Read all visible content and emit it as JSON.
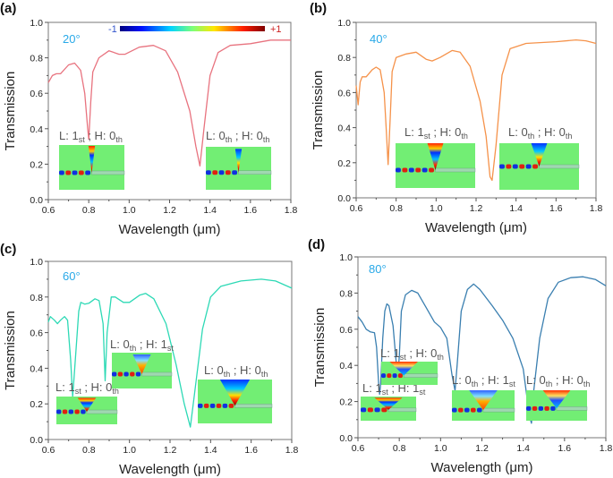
{
  "colorbar": {
    "min_label": "-1",
    "max_label": "+1"
  },
  "chart_data": [
    {
      "type": "line",
      "panel": "(a)",
      "angle": "20°",
      "color": "#e8737f",
      "xlabel": "Wavelength (μm)",
      "ylabel": "Transmission",
      "xlim": [
        0.6,
        1.8
      ],
      "ylim": [
        0.0,
        1.0
      ],
      "xticks": [
        "0.6",
        "0.8",
        "1.0",
        "1.2",
        "1.4",
        "1.6",
        "1.8"
      ],
      "yticks": [
        "0.0",
        "0.2",
        "0.4",
        "0.6",
        "0.8",
        "1.0"
      ],
      "x": [
        0.6,
        0.62,
        0.64,
        0.66,
        0.7,
        0.73,
        0.76,
        0.78,
        0.795,
        0.8,
        0.81,
        0.82,
        0.85,
        0.9,
        0.95,
        0.98,
        1.05,
        1.12,
        1.18,
        1.24,
        1.3,
        1.33,
        1.35,
        1.37,
        1.4,
        1.44,
        1.5,
        1.6,
        1.7,
        1.8
      ],
      "y": [
        0.66,
        0.7,
        0.71,
        0.71,
        0.76,
        0.77,
        0.73,
        0.6,
        0.4,
        0.34,
        0.55,
        0.72,
        0.8,
        0.84,
        0.82,
        0.82,
        0.86,
        0.87,
        0.84,
        0.72,
        0.5,
        0.3,
        0.19,
        0.4,
        0.7,
        0.83,
        0.87,
        0.88,
        0.9,
        0.9
      ],
      "annotations": [
        {
          "parts": [
            "L: 1",
            "st",
            " ; H: 0",
            "th"
          ]
        },
        {
          "parts": [
            "L: 0",
            "th",
            " ; H: 0",
            "th"
          ]
        }
      ]
    },
    {
      "type": "line",
      "panel": "(b)",
      "angle": "40°",
      "color": "#f5924a",
      "xlabel": "Wavelength (μm)",
      "ylabel": "Transmission",
      "xlim": [
        0.6,
        1.8
      ],
      "ylim": [
        0.0,
        1.0
      ],
      "xticks": [
        "0.6",
        "0.8",
        "1.0",
        "1.2",
        "1.4",
        "1.6",
        "1.8"
      ],
      "yticks": [
        "0.0",
        "0.2",
        "0.4",
        "0.6",
        "0.8",
        "1.0"
      ],
      "x": [
        0.6,
        0.61,
        0.62,
        0.63,
        0.65,
        0.68,
        0.7,
        0.72,
        0.74,
        0.75,
        0.76,
        0.77,
        0.78,
        0.8,
        0.85,
        0.9,
        0.95,
        0.98,
        1.02,
        1.08,
        1.12,
        1.17,
        1.22,
        1.25,
        1.27,
        1.28,
        1.3,
        1.33,
        1.37,
        1.45,
        1.6,
        1.7,
        1.75,
        1.8
      ],
      "y": [
        0.64,
        0.53,
        0.66,
        0.69,
        0.69,
        0.73,
        0.745,
        0.73,
        0.6,
        0.4,
        0.19,
        0.45,
        0.72,
        0.8,
        0.82,
        0.83,
        0.79,
        0.78,
        0.8,
        0.84,
        0.83,
        0.75,
        0.55,
        0.35,
        0.12,
        0.1,
        0.3,
        0.7,
        0.85,
        0.88,
        0.89,
        0.9,
        0.895,
        0.88
      ],
      "annotations": [
        {
          "parts": [
            "L: 1",
            "st",
            " ; H: 0",
            "th"
          ]
        },
        {
          "parts": [
            "L: 0",
            "th",
            " ; H: 0",
            "th"
          ]
        }
      ]
    },
    {
      "type": "line",
      "panel": "(c)",
      "angle": "60°",
      "color": "#2dd9b5",
      "xlabel": "Wavelength (μm)",
      "ylabel": "Transmission",
      "xlim": [
        0.6,
        1.8
      ],
      "ylim": [
        0.0,
        1.0
      ],
      "xticks": [
        "0.6",
        "0.8",
        "1.0",
        "1.2",
        "1.4",
        "1.6",
        "1.8"
      ],
      "yticks": [
        "0.0",
        "0.2",
        "0.4",
        "0.6",
        "0.8",
        "1.0"
      ],
      "x": [
        0.6,
        0.61,
        0.63,
        0.645,
        0.66,
        0.68,
        0.695,
        0.71,
        0.72,
        0.73,
        0.75,
        0.76,
        0.78,
        0.8,
        0.83,
        0.85,
        0.87,
        0.88,
        0.89,
        0.91,
        0.93,
        0.97,
        1.0,
        1.05,
        1.08,
        1.12,
        1.18,
        1.23,
        1.27,
        1.3,
        1.32,
        1.36,
        1.4,
        1.45,
        1.55,
        1.65,
        1.72,
        1.8
      ],
      "y": [
        0.66,
        0.69,
        0.67,
        0.65,
        0.67,
        0.69,
        0.67,
        0.45,
        0.24,
        0.4,
        0.72,
        0.77,
        0.76,
        0.765,
        0.79,
        0.78,
        0.65,
        0.33,
        0.6,
        0.8,
        0.8,
        0.77,
        0.77,
        0.81,
        0.82,
        0.79,
        0.65,
        0.42,
        0.2,
        0.07,
        0.25,
        0.62,
        0.8,
        0.86,
        0.89,
        0.9,
        0.89,
        0.85
      ],
      "annotations": [
        {
          "parts": [
            "L: 1",
            "st",
            " ; H: 0",
            "th"
          ]
        },
        {
          "parts": [
            "L: 0",
            "th",
            " ; H: 1",
            "st"
          ]
        },
        {
          "parts": [
            "L: 0",
            "th",
            " ; H: 0",
            "th"
          ]
        }
      ]
    },
    {
      "type": "line",
      "panel": "(d)",
      "angle": "80°",
      "color": "#3a7fb0",
      "xlabel": "Wavelength (μm)",
      "ylabel": "Transmission",
      "xlim": [
        0.6,
        1.8
      ],
      "ylim": [
        0.0,
        1.0
      ],
      "xticks": [
        "0.6",
        "0.8",
        "1.0",
        "1.2",
        "1.4",
        "1.6",
        "1.8"
      ],
      "yticks": [
        "0.0",
        "0.2",
        "0.4",
        "0.6",
        "0.8",
        "1.0"
      ],
      "x": [
        0.6,
        0.62,
        0.64,
        0.66,
        0.68,
        0.69,
        0.7,
        0.705,
        0.71,
        0.72,
        0.73,
        0.74,
        0.75,
        0.77,
        0.785,
        0.79,
        0.8,
        0.81,
        0.83,
        0.86,
        0.89,
        0.93,
        0.97,
        1.0,
        1.03,
        1.055,
        1.07,
        1.08,
        1.1,
        1.13,
        1.16,
        1.19,
        1.25,
        1.3,
        1.35,
        1.4,
        1.43,
        1.44,
        1.45,
        1.48,
        1.52,
        1.57,
        1.63,
        1.69,
        1.75,
        1.8
      ],
      "y": [
        0.67,
        0.64,
        0.6,
        0.585,
        0.58,
        0.5,
        0.3,
        0.24,
        0.3,
        0.55,
        0.7,
        0.74,
        0.73,
        0.62,
        0.42,
        0.3,
        0.45,
        0.7,
        0.79,
        0.815,
        0.8,
        0.72,
        0.64,
        0.61,
        0.55,
        0.35,
        0.26,
        0.4,
        0.7,
        0.82,
        0.85,
        0.82,
        0.73,
        0.65,
        0.55,
        0.38,
        0.12,
        0.08,
        0.25,
        0.55,
        0.77,
        0.86,
        0.885,
        0.89,
        0.875,
        0.84
      ],
      "annotations": [
        {
          "parts": [
            "L: 1",
            "st",
            " ; H: 1",
            "st"
          ]
        },
        {
          "parts": [
            "L: 1",
            "st",
            " ; H: 0",
            "th"
          ]
        },
        {
          "parts": [
            "L: 0",
            "th",
            " ; H: 1",
            "st"
          ]
        },
        {
          "parts": [
            "L: 0",
            "th",
            " ; H: 0",
            "th"
          ]
        }
      ]
    }
  ]
}
